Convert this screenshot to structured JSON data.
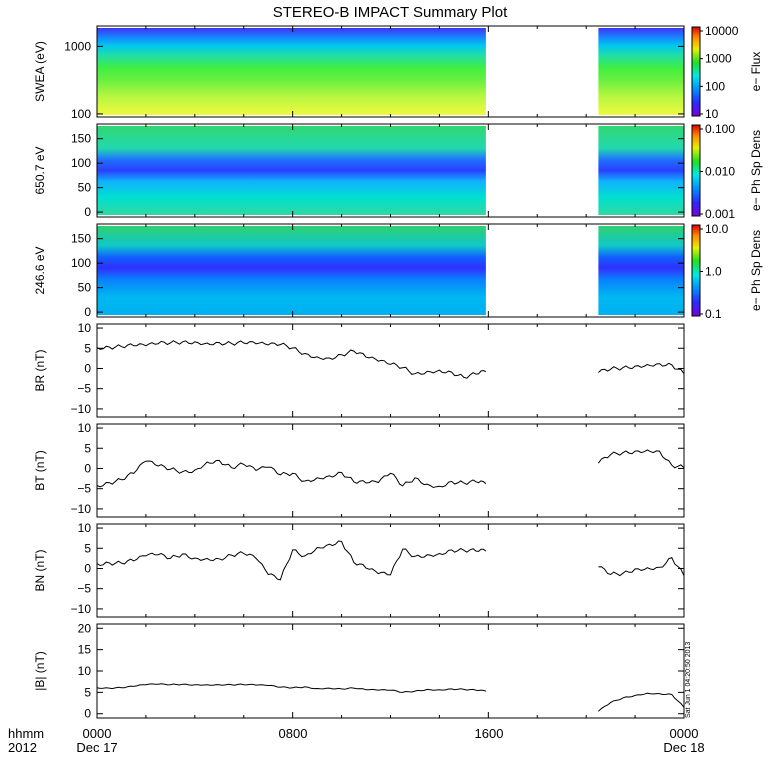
{
  "title": "STEREO-B IMPACT Summary Plot",
  "footer": {
    "hhmm": "hhmm",
    "year": "2012",
    "x_ticks": [
      "0000",
      "0800",
      "1600",
      "0000"
    ],
    "start_date": "Dec 17",
    "end_date": "Dec 18"
  },
  "timestamp": "Sat Jun 1 04:20:50 2013",
  "chart_data": [
    {
      "type": "heatmap",
      "ylabel": "SWEA (eV)",
      "yscale": "log",
      "ylim": [
        90,
        2000
      ],
      "yticks": [
        "100",
        "1000"
      ],
      "colorbar_label": "e− Flux",
      "colorbar_scale": "log",
      "colorbar_ticks": [
        "10",
        "100",
        "1000",
        "10000"
      ],
      "data_gaps_hours": [
        [
          15.9,
          20.5
        ]
      ],
      "grid": false
    },
    {
      "type": "heatmap",
      "ylabel": "650.7 eV",
      "yscale": "linear",
      "ylim": [
        -10,
        180
      ],
      "yticks": [
        "0",
        "50",
        "100",
        "150"
      ],
      "colorbar_label": "e− Ph Sp Dens",
      "colorbar_scale": "log",
      "colorbar_ticks": [
        "0.001",
        "0.010",
        "0.100"
      ],
      "data_gaps_hours": [
        [
          15.9,
          20.5
        ]
      ],
      "grid": false
    },
    {
      "type": "heatmap",
      "ylabel": "246.6 eV",
      "yscale": "linear",
      "ylim": [
        -10,
        180
      ],
      "yticks": [
        "0",
        "50",
        "100",
        "150"
      ],
      "colorbar_label": "e− Ph Sp Dens",
      "colorbar_scale": "log",
      "colorbar_ticks": [
        "0.1",
        "1.0",
        "10.0"
      ],
      "data_gaps_hours": [
        [
          15.9,
          20.5
        ]
      ],
      "grid": false
    },
    {
      "type": "line",
      "ylabel": "BR (nT)",
      "ylim": [
        -12,
        11
      ],
      "yticks": [
        "10",
        "5",
        "0",
        "−5",
        "−10"
      ],
      "x_hours": [
        0,
        0.5,
        1,
        1.5,
        2,
        2.5,
        3,
        3.5,
        4,
        4.5,
        5,
        5.5,
        6,
        6.5,
        7,
        7.5,
        8,
        8.5,
        9,
        9.5,
        10,
        10.5,
        11,
        11.5,
        12,
        12.5,
        13,
        13.5,
        14,
        14.5,
        15,
        15.5,
        15.9,
        20.5,
        21,
        21.5,
        22,
        22.5,
        23,
        23.5,
        24
      ],
      "y": [
        5.2,
        5.3,
        5.4,
        5.6,
        5.6,
        6.1,
        6.3,
        6.6,
        6.6,
        6.3,
        6.4,
        6.2,
        6.3,
        6.1,
        5.8,
        5.9,
        5.1,
        3.7,
        2.9,
        2.6,
        3.4,
        4.3,
        2.8,
        1.8,
        1.0,
        0.2,
        -1.3,
        -0.7,
        -0.4,
        -0.9,
        -2.2,
        -1.4,
        -0.8,
        -1.0,
        -0.2,
        0.2,
        0.6,
        1.0,
        1.2,
        0.9,
        -1.3
      ],
      "segments": [
        [
          0,
          32
        ],
        [
          33,
          40
        ]
      ]
    },
    {
      "type": "line",
      "ylabel": "BT (nT)",
      "ylim": [
        -12,
        11
      ],
      "yticks": [
        "10",
        "5",
        "0",
        "−5",
        "−10"
      ],
      "x_hours": [
        0,
        0.5,
        1,
        1.5,
        2,
        2.5,
        3,
        3.5,
        4,
        4.5,
        5,
        5.5,
        6,
        6.5,
        7,
        7.5,
        8,
        8.5,
        9,
        9.5,
        10,
        10.5,
        11,
        11.5,
        12,
        12.5,
        13,
        13.5,
        14,
        14.5,
        15,
        15.5,
        15.9,
        20.5,
        21,
        21.5,
        22,
        22.5,
        23,
        23.5,
        24
      ],
      "y": [
        -4.2,
        -3.5,
        -2.8,
        -1.2,
        1.8,
        0.6,
        -0.2,
        -0.8,
        -0.4,
        1.6,
        2.0,
        0.2,
        1.0,
        -0.5,
        0.3,
        -1.6,
        -1.2,
        -3.1,
        -2.3,
        -1.8,
        -1.0,
        -3.3,
        -3.6,
        -3.5,
        -1.2,
        -4.3,
        -2.3,
        -3.9,
        -4.4,
        -3.2,
        -3.6,
        -3.3,
        -3.8,
        1.3,
        3.4,
        3.9,
        4.3,
        4.6,
        4.3,
        0.8,
        0.2
      ],
      "segments": [
        [
          0,
          32
        ],
        [
          33,
          40
        ]
      ]
    },
    {
      "type": "line",
      "ylabel": "BN (nT)",
      "ylim": [
        -12,
        11
      ],
      "yticks": [
        "10",
        "5",
        "0",
        "−5",
        "−10"
      ],
      "x_hours": [
        0,
        0.5,
        1,
        1.5,
        2,
        2.5,
        3,
        3.5,
        4,
        4.5,
        5,
        5.5,
        6,
        6.5,
        7,
        7.5,
        8,
        8.5,
        9,
        9.5,
        10,
        10.5,
        11,
        11.5,
        12,
        12.5,
        13,
        13.5,
        14,
        14.5,
        15,
        15.5,
        15.9,
        20.5,
        21,
        21.5,
        22,
        22.5,
        23,
        23.5,
        24
      ],
      "y": [
        1.2,
        1.4,
        1.3,
        1.9,
        3.1,
        3.4,
        2.5,
        3.6,
        2.6,
        2.5,
        2.4,
        3.3,
        3.7,
        2.5,
        -1.5,
        -2.8,
        4.6,
        3.1,
        5.2,
        6.0,
        6.7,
        1.5,
        0.1,
        -1.3,
        -1.6,
        4.8,
        3.0,
        3.4,
        3.7,
        4.6,
        4.5,
        4.3,
        4.3,
        0.4,
        -1.5,
        -1.2,
        -0.1,
        0.2,
        0.3,
        2.7,
        -1.8
      ],
      "segments": [
        [
          0,
          32
        ],
        [
          33,
          40
        ]
      ]
    },
    {
      "type": "line",
      "ylabel": "|B| (nT)",
      "ylim": [
        -1,
        21
      ],
      "yticks": [
        "20",
        "15",
        "10",
        "5",
        "0"
      ],
      "x_hours": [
        0,
        0.5,
        1,
        1.5,
        2,
        2.5,
        3,
        3.5,
        4,
        4.5,
        5,
        5.5,
        6,
        6.5,
        7,
        7.5,
        8,
        8.5,
        9,
        9.5,
        10,
        10.5,
        11,
        11.5,
        12,
        12.5,
        13,
        13.5,
        14,
        14.5,
        15,
        15.5,
        15.9,
        20.5,
        21,
        21.5,
        22,
        22.5,
        23,
        23.5,
        24
      ],
      "y": [
        6.1,
        6.0,
        6.1,
        6.4,
        6.8,
        6.9,
        6.8,
        6.9,
        6.8,
        6.8,
        6.8,
        6.8,
        6.8,
        6.7,
        6.6,
        6.2,
        6.1,
        6.3,
        5.9,
        6.0,
        5.8,
        6.0,
        5.6,
        5.5,
        5.5,
        5.0,
        5.3,
        5.7,
        5.6,
        5.8,
        5.7,
        5.5,
        5.3,
        0.6,
        2.6,
        3.7,
        4.3,
        4.8,
        4.7,
        4.5,
        1.5
      ],
      "segments": [
        [
          0,
          32
        ],
        [
          33,
          40
        ]
      ]
    }
  ]
}
